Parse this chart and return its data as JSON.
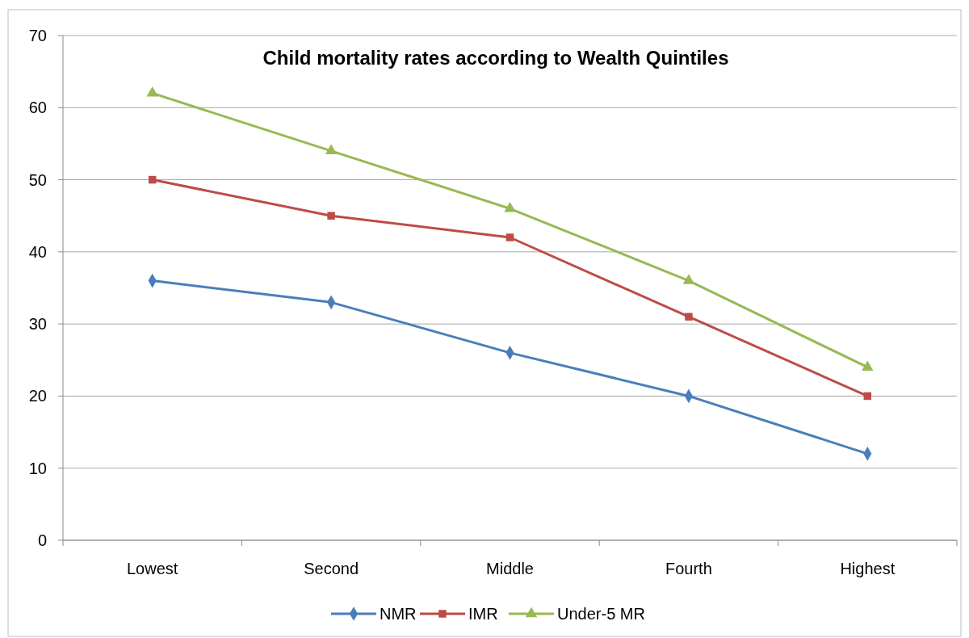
{
  "chart_data": {
    "type": "line",
    "title": "Child mortality rates according to Wealth Quintiles",
    "categories": [
      "Lowest",
      "Second",
      "Middle",
      "Fourth",
      "Highest"
    ],
    "series": [
      {
        "name": "NMR",
        "color": "#4a7ebb",
        "marker": "diamond",
        "values": [
          36,
          33,
          26,
          20,
          12
        ]
      },
      {
        "name": "IMR",
        "color": "#be4b48",
        "marker": "square",
        "values": [
          50,
          45,
          42,
          31,
          20
        ]
      },
      {
        "name": "Under-5 MR",
        "color": "#98b954",
        "marker": "triangle",
        "values": [
          62,
          54,
          46,
          36,
          24
        ]
      }
    ],
    "ylim": [
      0,
      70
    ],
    "yticks": [
      0,
      10,
      20,
      30,
      40,
      50,
      60,
      70
    ],
    "grid": "y",
    "legend": "bottom"
  }
}
